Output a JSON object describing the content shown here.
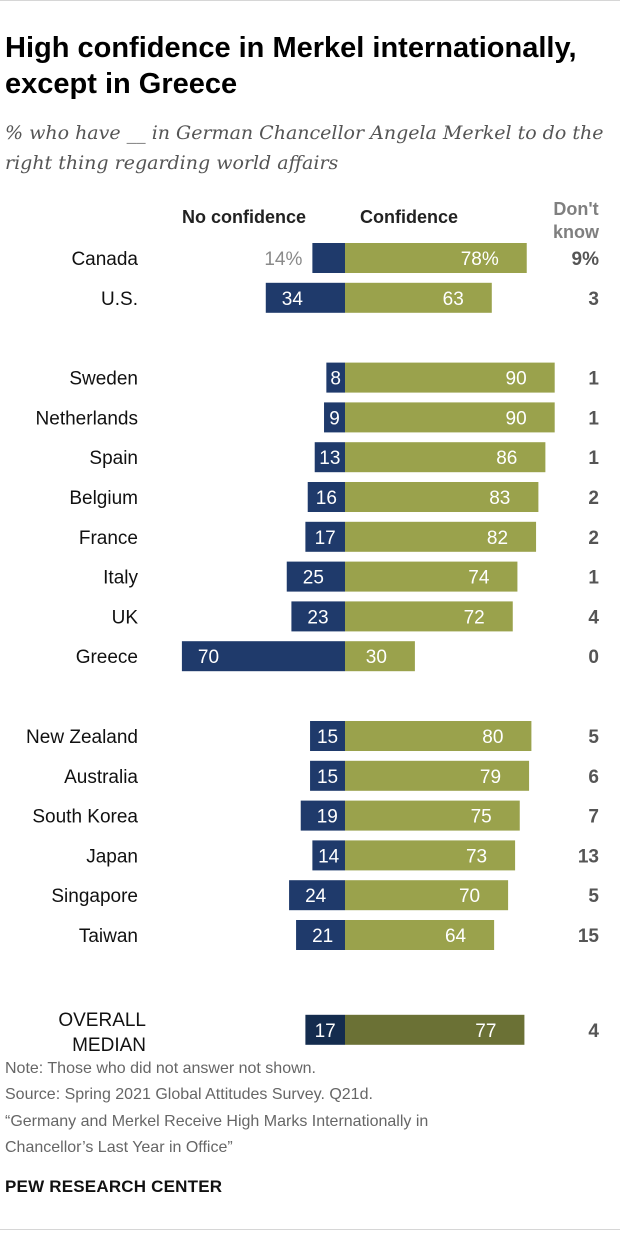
{
  "title": "High confidence in Merkel internationally, except in Greece",
  "subtitle": "% who have __ in German Chancellor Angela Merkel to do the right thing regarding world affairs",
  "colors": {
    "no_confidence": "#1f3a6b",
    "confidence": "#9aa24c",
    "median_no_confidence": "#142c4e",
    "median_confidence": "#6b7135",
    "dont_know_text": "#555555"
  },
  "chart_data": {
    "type": "bar",
    "orientation": "horizontal-diverging",
    "headers": {
      "no_confidence": "No confidence",
      "confidence": "Confidence",
      "dont_know": "Don't know"
    },
    "rows": [
      {
        "label": "Canada",
        "no_conf": 14,
        "conf": 78,
        "dk": 9,
        "no_conf_label": "14%",
        "conf_label": "78%",
        "dk_label": "9%",
        "group": 0
      },
      {
        "label": "U.S.",
        "no_conf": 34,
        "conf": 63,
        "dk": 3,
        "no_conf_label": "34",
        "conf_label": "63",
        "dk_label": "3",
        "group": 0
      },
      {
        "label": "Sweden",
        "no_conf": 8,
        "conf": 90,
        "dk": 1,
        "no_conf_label": "8",
        "conf_label": "90",
        "dk_label": "1",
        "group": 1
      },
      {
        "label": "Netherlands",
        "no_conf": 9,
        "conf": 90,
        "dk": 1,
        "no_conf_label": "9",
        "conf_label": "90",
        "dk_label": "1",
        "group": 1
      },
      {
        "label": "Spain",
        "no_conf": 13,
        "conf": 86,
        "dk": 1,
        "no_conf_label": "13",
        "conf_label": "86",
        "dk_label": "1",
        "group": 1
      },
      {
        "label": "Belgium",
        "no_conf": 16,
        "conf": 83,
        "dk": 2,
        "no_conf_label": "16",
        "conf_label": "83",
        "dk_label": "2",
        "group": 1
      },
      {
        "label": "France",
        "no_conf": 17,
        "conf": 82,
        "dk": 2,
        "no_conf_label": "17",
        "conf_label": "82",
        "dk_label": "2",
        "group": 1
      },
      {
        "label": "Italy",
        "no_conf": 25,
        "conf": 74,
        "dk": 1,
        "no_conf_label": "25",
        "conf_label": "74",
        "dk_label": "1",
        "group": 1
      },
      {
        "label": "UK",
        "no_conf": 23,
        "conf": 72,
        "dk": 4,
        "no_conf_label": "23",
        "conf_label": "72",
        "dk_label": "4",
        "group": 1
      },
      {
        "label": "Greece",
        "no_conf": 70,
        "conf": 30,
        "dk": 0,
        "no_conf_label": "70",
        "conf_label": "30",
        "dk_label": "0",
        "group": 1
      },
      {
        "label": "New Zealand",
        "no_conf": 15,
        "conf": 80,
        "dk": 5,
        "no_conf_label": "15",
        "conf_label": "80",
        "dk_label": "5",
        "group": 2
      },
      {
        "label": "Australia",
        "no_conf": 15,
        "conf": 79,
        "dk": 6,
        "no_conf_label": "15",
        "conf_label": "79",
        "dk_label": "6",
        "group": 2
      },
      {
        "label": "South Korea",
        "no_conf": 19,
        "conf": 75,
        "dk": 7,
        "no_conf_label": "19",
        "conf_label": "75",
        "dk_label": "7",
        "group": 2
      },
      {
        "label": "Japan",
        "no_conf": 14,
        "conf": 73,
        "dk": 13,
        "no_conf_label": "14",
        "conf_label": "73",
        "dk_label": "13",
        "group": 2
      },
      {
        "label": "Singapore",
        "no_conf": 24,
        "conf": 70,
        "dk": 5,
        "no_conf_label": "24",
        "conf_label": "70",
        "dk_label": "5",
        "group": 2
      },
      {
        "label": "Taiwan",
        "no_conf": 21,
        "conf": 64,
        "dk": 15,
        "no_conf_label": "21",
        "conf_label": "64",
        "dk_label": "15",
        "group": 2
      },
      {
        "label": "OVERALL MEDIAN",
        "label_lines": [
          "OVERALL",
          "MEDIAN"
        ],
        "no_conf": 17,
        "conf": 77,
        "dk": 4,
        "no_conf_label": "17",
        "conf_label": "77",
        "dk_label": "4",
        "group": 3,
        "median": true
      }
    ]
  },
  "notes": {
    "note": "Note: Those who did not answer not shown.",
    "source": "Source: Spring 2021 Global Attitudes Survey. Q21d.",
    "report_line1": "“Germany and Merkel Receive High Marks Internationally in",
    "report_line2": "Chancellor’s Last Year in Office”"
  },
  "brand": "PEW RESEARCH CENTER"
}
